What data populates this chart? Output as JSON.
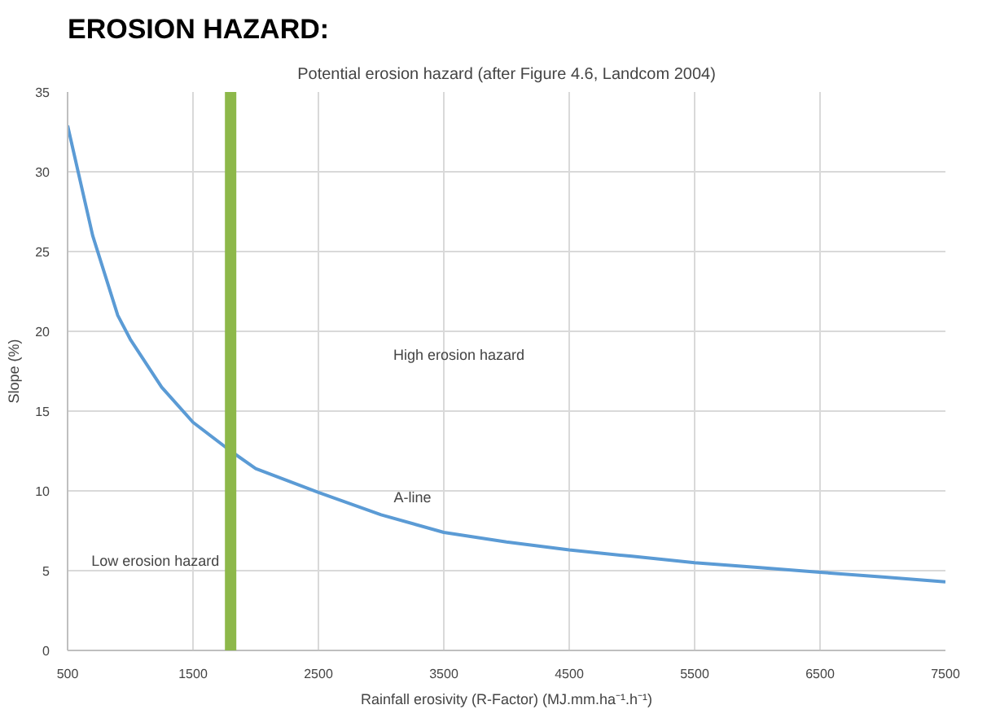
{
  "chart_data": {
    "type": "line",
    "title": "EROSION HAZARD:",
    "subtitle": "Potential erosion hazard (after Figure 4.6, Landcom 2004)",
    "xlabel": "Rainfall erosivity (R-Factor) (MJ.mm.ha⁻¹.h⁻¹)",
    "ylabel": "Slope (%)",
    "series": [
      {
        "color": "#5b9bd5",
        "x": [
          500,
          700,
          900,
          1000,
          1250,
          1500,
          1800,
          2000,
          2500,
          3000,
          3500,
          4000,
          4500,
          5000,
          5500,
          6000,
          6500,
          7000,
          7500
        ],
        "values": [
          32.9,
          26.0,
          21.0,
          19.5,
          16.5,
          14.3,
          12.5,
          11.4,
          9.9,
          8.5,
          7.4,
          6.8,
          6.3,
          5.9,
          5.5,
          5.2,
          4.9,
          4.6,
          4.3
        ]
      }
    ],
    "xlim": [
      500,
      7500
    ],
    "ylim": [
      0,
      35
    ],
    "xticks": [
      500,
      1500,
      2500,
      3500,
      4500,
      5500,
      6500,
      7500
    ],
    "yticks": [
      0,
      5,
      10,
      15,
      20,
      25,
      30,
      35
    ],
    "ref_lines": [
      {
        "axis": "x",
        "value": 1800,
        "color": "#8db84a"
      }
    ],
    "annotations": [
      "High erosion hazard",
      "A-line",
      "Low erosion hazard"
    ],
    "grid": true,
    "marker": "none",
    "line_style": "solid"
  }
}
